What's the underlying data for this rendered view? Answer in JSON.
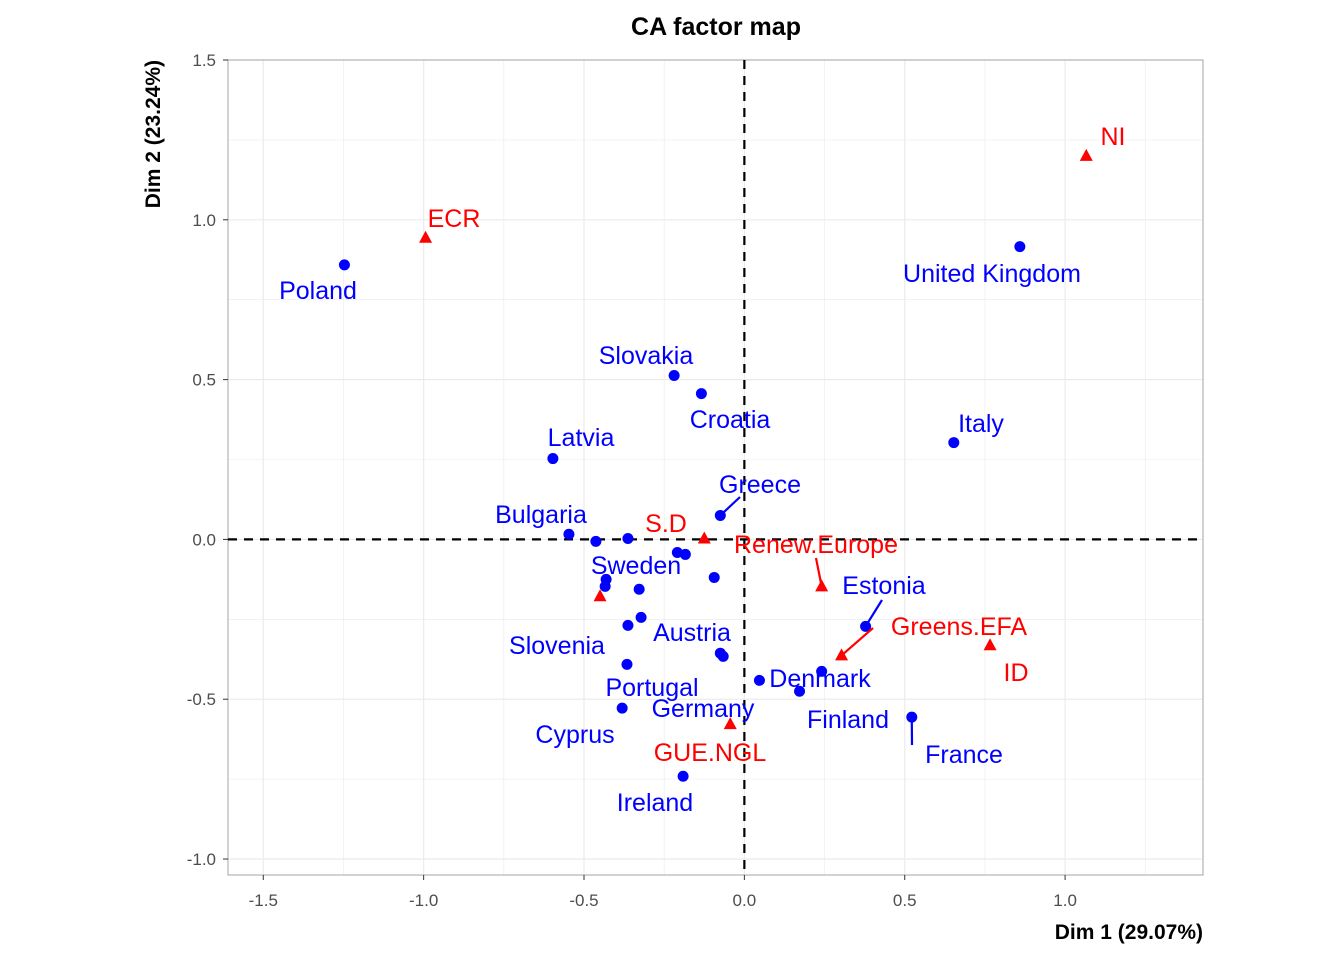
{
  "chart_data": {
    "type": "scatter",
    "title": "CA factor map",
    "xlabel": "Dim 1 (29.07%)",
    "ylabel": "Dim 2 (23.24%)",
    "xlim": [
      -1.61,
      1.43
    ],
    "ylim": [
      -1.05,
      1.5
    ],
    "xticks": [
      -1.5,
      -1.0,
      -0.5,
      0.0,
      0.5,
      1.0
    ],
    "xtick_labels": [
      "-1.5",
      "-1.0",
      "-0.5",
      "0.0",
      "0.5",
      "1.0"
    ],
    "yticks": [
      -1.0,
      -0.5,
      0.0,
      0.5,
      1.0,
      1.5
    ],
    "ytick_labels": [
      "-1.0",
      "-0.5",
      "0.0",
      "0.5",
      "1.0",
      "1.5"
    ],
    "grid": true,
    "colors": {
      "rows": "#0000ff",
      "cols": "#ff0000"
    },
    "series": [
      {
        "name": "rows",
        "marker": "circle",
        "points": [
          {
            "label": "Poland",
            "x": -1.247,
            "y": 0.859
          },
          {
            "label": "United Kingdom",
            "x": 0.859,
            "y": 0.916
          },
          {
            "label": "Slovakia",
            "x": -0.219,
            "y": 0.513
          },
          {
            "label": "Croatia",
            "x": -0.134,
            "y": 0.456
          },
          {
            "label": "Italy",
            "x": 0.653,
            "y": 0.303
          },
          {
            "label": "Latvia",
            "x": -0.597,
            "y": 0.253
          },
          {
            "label": "Greece",
            "x": -0.075,
            "y": 0.075
          },
          {
            "label": "Bulgaria",
            "x": -0.547,
            "y": 0.016
          },
          {
            "label": "",
            "x": -0.463,
            "y": -0.006
          },
          {
            "label": "Sweden",
            "x": -0.363,
            "y": 0.003
          },
          {
            "label": "",
            "x": -0.209,
            "y": -0.041
          },
          {
            "label": "",
            "x": -0.184,
            "y": -0.047
          },
          {
            "label": "",
            "x": -0.094,
            "y": -0.119
          },
          {
            "label": "",
            "x": -0.431,
            "y": -0.125
          },
          {
            "label": "",
            "x": -0.434,
            "y": -0.147
          },
          {
            "label": "",
            "x": -0.328,
            "y": -0.156
          },
          {
            "label": "Austria",
            "x": -0.322,
            "y": -0.244
          },
          {
            "label": "Slovenia",
            "x": -0.363,
            "y": -0.269
          },
          {
            "label": "",
            "x": -0.075,
            "y": -0.356
          },
          {
            "label": "Germany",
            "x": -0.066,
            "y": -0.366
          },
          {
            "label": "Portugal",
            "x": -0.366,
            "y": -0.391
          },
          {
            "label": "Cyprus",
            "x": -0.381,
            "y": -0.528
          },
          {
            "label": "Ireland",
            "x": -0.191,
            "y": -0.741
          },
          {
            "label": "",
            "x": 0.047,
            "y": -0.441
          },
          {
            "label": "Denmark",
            "x": 0.241,
            "y": -0.413
          },
          {
            "label": "Finland",
            "x": 0.172,
            "y": -0.475
          },
          {
            "label": "Estonia",
            "x": 0.378,
            "y": -0.272
          },
          {
            "label": "France",
            "x": 0.522,
            "y": -0.556
          }
        ]
      },
      {
        "name": "cols",
        "marker": "triangle",
        "points": [
          {
            "label": "ECR",
            "x": -0.994,
            "y": 0.944
          },
          {
            "label": "NI",
            "x": 1.066,
            "y": 1.2
          },
          {
            "label": "S.D",
            "x": -0.125,
            "y": 0.003
          },
          {
            "label": "Renew.Europe",
            "x": 0.241,
            "y": -0.147
          },
          {
            "label": "Greens.EFA",
            "x": 0.303,
            "y": -0.363
          },
          {
            "label": "ID",
            "x": 0.766,
            "y": -0.331
          },
          {
            "label": "GUE.NGL",
            "x": -0.044,
            "y": -0.578
          },
          {
            "label": "",
            "x": -0.45,
            "y": -0.178
          }
        ]
      }
    ]
  }
}
